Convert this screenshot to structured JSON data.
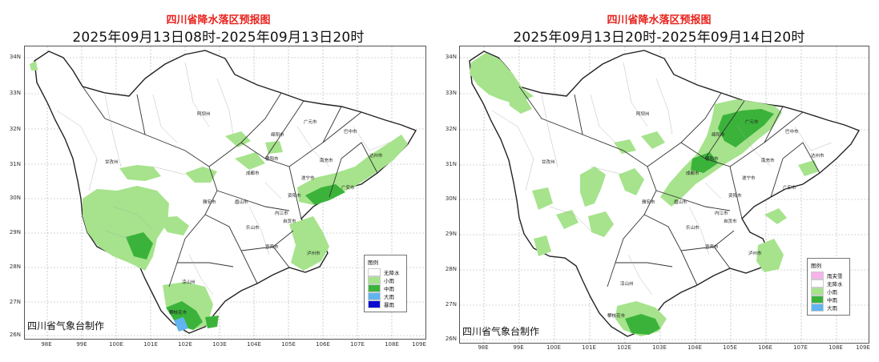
{
  "maps": [
    {
      "title": "四川省降水落区预报图",
      "subtitle": "2025年09月13日08时-2025年09月13日20时",
      "maker": "四川省气象台制作",
      "lat_ticks": [
        "34N",
        "33N",
        "32N",
        "31N",
        "30N",
        "29N",
        "28N",
        "27N",
        "26N"
      ],
      "lon_ticks": [
        "98E",
        "99E",
        "100E",
        "101E",
        "102E",
        "103E",
        "104E",
        "105E",
        "106E",
        "107E",
        "108E",
        "109E"
      ],
      "legend": {
        "title": "图例",
        "items": [
          {
            "label": "无降水",
            "color": "#ffffff"
          },
          {
            "label": "小雨",
            "color": "#a6e38c"
          },
          {
            "label": "中雨",
            "color": "#3bb33b"
          },
          {
            "label": "大雨",
            "color": "#61b4f0"
          },
          {
            "label": "暴雨",
            "color": "#0a0ad0"
          }
        ]
      },
      "cities": [
        "阿坝州",
        "广元市",
        "巴中市",
        "绵阳市",
        "达州市",
        "甘孜州",
        "德阳市",
        "南充市",
        "成都市",
        "遂宁市",
        "广安市",
        "雅安市",
        "资阳市",
        "眉山市",
        "内江市",
        "乐山市",
        "自贡市",
        "泸州市",
        "宜宾市",
        "凉山州",
        "攀枝花市"
      ]
    },
    {
      "title": "四川省降水落区预报图",
      "subtitle": "2025年09月13日20时-2025年09月14日20时",
      "maker": "四川省气象台制作",
      "lat_ticks": [
        "34N",
        "33N",
        "32N",
        "31N",
        "30N",
        "29N",
        "28N",
        "27N",
        "26N"
      ],
      "lon_ticks": [
        "98E",
        "99E",
        "100E",
        "101E",
        "102E",
        "103E",
        "104E",
        "105E",
        "106E",
        "107E",
        "108E",
        "109E"
      ],
      "legend": {
        "title": "图例",
        "items": [
          {
            "label": "雨夹雪",
            "color": "#f7b3ea"
          },
          {
            "label": "无降水",
            "color": "#ffffff"
          },
          {
            "label": "小雨",
            "color": "#a6e38c"
          },
          {
            "label": "中雨",
            "color": "#3bb33b"
          },
          {
            "label": "大雨",
            "color": "#61b4f0"
          }
        ]
      },
      "cities": [
        "阿坝州",
        "广元市",
        "巴中市",
        "绵阳市",
        "达州市",
        "甘孜州",
        "德阳市",
        "南充市",
        "成都市",
        "遂宁市",
        "广安市",
        "雅安市",
        "资阳市",
        "眉山市",
        "内江市",
        "乐山市",
        "自贡市",
        "泸州市",
        "宜宾市",
        "凉山州",
        "攀枝花市"
      ]
    }
  ]
}
